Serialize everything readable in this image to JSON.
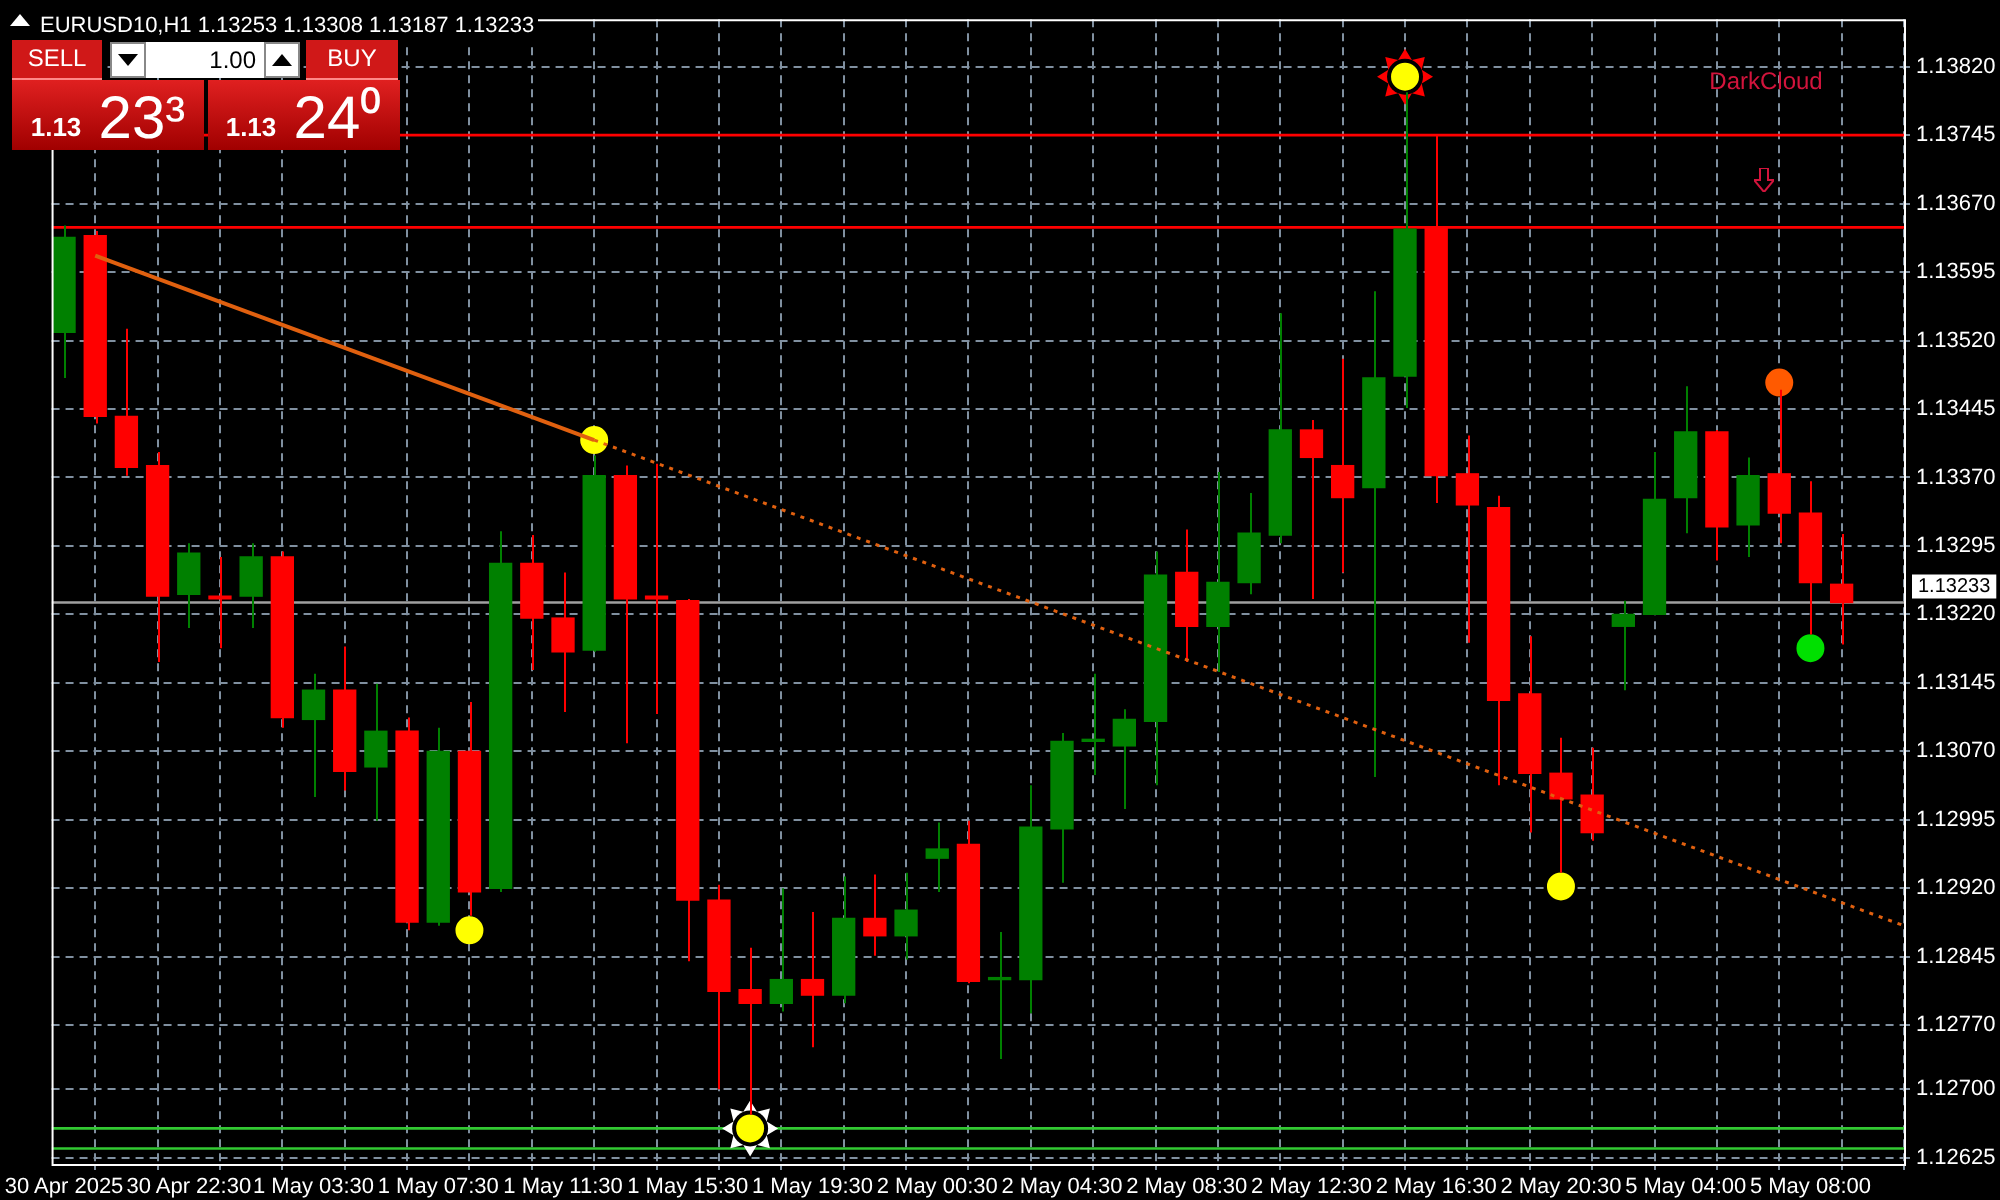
{
  "chart_data": {
    "type": "candlestick",
    "title": "EURUSD10,H1",
    "subtitle": "1.13253 1.13308 1.13187 1.13233",
    "categories": [
      "30 Apr 2025",
      null,
      null,
      null,
      "30 Apr 22:30",
      null,
      null,
      null,
      "1 May 03:30",
      null,
      null,
      null,
      "1 May 07:30",
      null,
      null,
      null,
      "1 May 11:30",
      null,
      null,
      null,
      "1 May 15:30",
      null,
      null,
      null,
      "1 May 19:30",
      null,
      null,
      null,
      "2 May 00:30",
      null,
      null,
      null,
      "2 May 04:30",
      null,
      null,
      null,
      "2 May 08:30",
      null,
      null,
      null,
      "2 May 12:30",
      null,
      null,
      null,
      "2 May 16:30",
      null,
      null,
      null,
      "2 May 20:30",
      null,
      null,
      null,
      "5 May 04:00",
      null,
      null,
      null,
      "5 May 08:00",
      null,
      null,
      null
    ],
    "ohlc": [
      [
        1.13529,
        1.13646,
        1.13479,
        1.13633
      ],
      [
        1.13635,
        1.1364,
        1.13429,
        1.13437
      ],
      [
        1.13437,
        1.13533,
        1.13372,
        1.13381
      ],
      [
        1.13383,
        1.13398,
        1.13168,
        1.1324
      ],
      [
        1.13242,
        1.13298,
        1.13205,
        1.13287
      ],
      [
        1.1324,
        1.13283,
        1.13183,
        1.13237
      ],
      [
        1.1324,
        1.13298,
        1.13205,
        1.13283
      ],
      [
        1.13283,
        1.13289,
        1.13096,
        1.13107
      ],
      [
        1.13105,
        1.13155,
        1.1302,
        1.13137
      ],
      [
        1.13137,
        1.13185,
        1.13027,
        1.13048
      ],
      [
        1.13053,
        1.13144,
        1.12994,
        1.13092
      ],
      [
        1.13092,
        1.13107,
        1.12874,
        1.12883
      ],
      [
        1.12883,
        1.13096,
        1.12879,
        1.1307
      ],
      [
        1.1307,
        1.13124,
        1.1289,
        1.12916
      ],
      [
        1.1292,
        1.13311,
        1.12916,
        1.13276
      ],
      [
        1.13276,
        1.13307,
        1.13159,
        1.13216
      ],
      [
        1.13216,
        1.13266,
        1.13113,
        1.13179
      ],
      [
        1.13181,
        1.13394,
        1.13179,
        1.13372
      ],
      [
        1.13372,
        1.13383,
        1.13079,
        1.13237
      ],
      [
        1.1324,
        1.13385,
        1.13111,
        1.13237
      ],
      [
        1.13235,
        1.13237,
        1.1284,
        1.12907
      ],
      [
        1.12907,
        1.12924,
        1.127,
        1.12807
      ],
      [
        1.12809,
        1.12855,
        1.12672,
        1.12794
      ],
      [
        1.12794,
        1.1292,
        1.12785,
        1.1282
      ],
      [
        1.1282,
        1.12894,
        1.12746,
        1.12803
      ],
      [
        1.12803,
        1.12933,
        1.12794,
        1.12887
      ],
      [
        1.12887,
        1.12935,
        1.12846,
        1.12868
      ],
      [
        1.12868,
        1.12937,
        1.12842,
        1.12896
      ],
      [
        1.12953,
        1.12992,
        1.12916,
        1.12963
      ],
      [
        1.12968,
        1.12994,
        1.12816,
        1.12818
      ],
      [
        1.1282,
        1.12872,
        1.12733,
        1.12822
      ],
      [
        1.1282,
        1.13033,
        1.12783,
        1.12987
      ],
      [
        1.12985,
        1.1309,
        1.12926,
        1.13081
      ],
      [
        1.13081,
        1.13155,
        1.13044,
        1.13083
      ],
      [
        1.13076,
        1.13116,
        1.13007,
        1.13105
      ],
      [
        1.13103,
        1.13289,
        1.13033,
        1.13263
      ],
      [
        1.13266,
        1.13313,
        1.13168,
        1.13207
      ],
      [
        1.13207,
        1.13376,
        1.13157,
        1.13255
      ],
      [
        1.13255,
        1.13353,
        1.13242,
        1.13309
      ],
      [
        1.13307,
        1.1355,
        1.13298,
        1.13422
      ],
      [
        1.13422,
        1.13433,
        1.13237,
        1.13392
      ],
      [
        1.13383,
        1.135,
        1.13266,
        1.13348
      ],
      [
        1.13359,
        1.13574,
        1.13042,
        1.13479
      ],
      [
        1.13481,
        1.13792,
        1.13446,
        1.13642
      ],
      [
        1.13644,
        1.13745,
        1.13342,
        1.13372
      ],
      [
        1.13374,
        1.13416,
        1.13189,
        1.1334
      ],
      [
        1.13337,
        1.1335,
        1.13033,
        1.13126
      ],
      [
        1.13133,
        1.13196,
        1.12981,
        1.13046
      ],
      [
        1.13046,
        1.13085,
        1.12937,
        1.13018
      ],
      [
        1.13022,
        1.13074,
        1.12972,
        1.12981
      ],
      [
        1.13207,
        1.13235,
        1.13137,
        1.1322
      ],
      [
        1.1322,
        1.13398,
        1.1322,
        1.13346
      ],
      [
        1.13348,
        1.1347,
        1.13309,
        1.1342
      ],
      [
        1.1342,
        1.13422,
        1.13279,
        1.13316
      ],
      [
        1.13318,
        1.13392,
        1.13283,
        1.13372
      ],
      [
        1.13374,
        1.13466,
        1.13298,
        1.13331
      ],
      [
        1.13331,
        1.13366,
        1.13198,
        1.13255
      ],
      [
        1.13253,
        1.13308,
        1.13187,
        1.13233
      ],
      null,
      null
    ],
    "colors": [
      "#008000",
      "#ff0000",
      "#ff0000",
      "#ff0000",
      "#008000",
      "#ff0000",
      "#008000",
      "#ff0000",
      "#008000",
      "#ff0000",
      "#008000",
      "#ff0000",
      "#008000",
      "#ff0000",
      "#008000",
      "#ff0000",
      "#ff0000",
      "#008000",
      "#ff0000",
      "#ff0000",
      "#ff0000",
      "#ff0000",
      "#ff0000",
      "#008000",
      "#ff0000",
      "#008000",
      "#ff0000",
      "#008000",
      "#008000",
      "#ff0000",
      "#008000",
      "#008000",
      "#008000",
      "#008000",
      "#008000",
      "#008000",
      "#ff0000",
      "#008000",
      "#008000",
      "#008000",
      "#ff0000",
      "#ff0000",
      "#008000",
      "#008000",
      "#ff0000",
      "#ff0000",
      "#ff0000",
      "#ff0000",
      "#ff0000",
      "#ff0000",
      "#008000",
      "#008000",
      "#008000",
      "#ff0000",
      "#008000",
      "#ff0000",
      "#ff0000",
      "#ff0000",
      null,
      null
    ],
    "series": [
      {
        "type": "line",
        "color": "#e0600f",
        "line_style": "solid",
        "values": [
          null,
          1.13613,
          null,
          null,
          null,
          null,
          null,
          null,
          null,
          null,
          null,
          null,
          null,
          null,
          null,
          null,
          null,
          1.13411,
          null,
          null,
          null,
          null,
          null,
          null,
          null,
          null,
          null,
          null,
          null,
          null,
          null,
          null,
          null,
          null,
          null,
          null,
          null,
          null,
          null,
          null,
          null,
          null,
          null,
          null,
          null,
          null,
          null,
          null,
          null,
          null,
          null,
          null,
          null,
          null,
          null,
          null,
          null,
          null,
          null,
          null
        ]
      },
      {
        "type": "line",
        "color": "#e0600f",
        "line_style": "dotted",
        "values": [
          null,
          null,
          null,
          null,
          null,
          null,
          null,
          null,
          null,
          null,
          null,
          null,
          null,
          null,
          null,
          null,
          null,
          1.13411,
          null,
          null,
          null,
          null,
          null,
          null,
          null,
          null,
          null,
          null,
          null,
          null,
          null,
          null,
          null,
          null,
          null,
          null,
          null,
          null,
          null,
          null,
          null,
          null,
          null,
          null,
          null,
          null,
          null,
          null,
          null,
          null,
          null,
          null,
          null,
          null,
          null,
          null,
          null,
          null,
          null,
          1.12879
        ]
      },
      {
        "type": "scatter",
        "color": "#ff0000",
        "marker": "star",
        "values": [
          null,
          null,
          null,
          null,
          null,
          null,
          null,
          null,
          null,
          null,
          null,
          null,
          null,
          null,
          null,
          null,
          null,
          null,
          null,
          null,
          null,
          null,
          null,
          null,
          null,
          null,
          null,
          null,
          null,
          null,
          null,
          null,
          null,
          null,
          null,
          null,
          null,
          null,
          null,
          null,
          null,
          null,
          null,
          1.13809,
          null,
          null,
          null,
          null,
          null,
          null,
          null,
          null,
          null,
          null,
          null,
          null,
          null,
          null,
          null,
          null
        ]
      },
      {
        "type": "scatter",
        "color": "#ffffff",
        "marker": "star",
        "values": [
          null,
          null,
          null,
          null,
          null,
          null,
          null,
          null,
          null,
          null,
          null,
          null,
          null,
          null,
          null,
          null,
          null,
          null,
          null,
          null,
          null,
          null,
          1.12657,
          null,
          null,
          null,
          null,
          null,
          null,
          null,
          null,
          null,
          null,
          null,
          null,
          null,
          null,
          null,
          null,
          null,
          null,
          null,
          null,
          null,
          null,
          null,
          null,
          null,
          null,
          null,
          null,
          null,
          null,
          null,
          null,
          null,
          null,
          null,
          null,
          null
        ]
      },
      {
        "type": "scatter",
        "color": "#ffff00",
        "marker": "circle",
        "values": [
          null,
          null,
          null,
          null,
          null,
          null,
          null,
          null,
          null,
          null,
          null,
          null,
          null,
          1.12874,
          null,
          null,
          null,
          1.13411,
          null,
          null,
          null,
          null,
          1.12657,
          null,
          null,
          null,
          null,
          null,
          null,
          null,
          null,
          null,
          null,
          null,
          null,
          null,
          null,
          null,
          null,
          null,
          null,
          null,
          null,
          1.13809,
          null,
          null,
          null,
          null,
          1.12922,
          null,
          null,
          null,
          null,
          null,
          null,
          null,
          null,
          null,
          null,
          null
        ]
      },
      {
        "type": "scatter",
        "color": "#ff5a00",
        "marker": "circle",
        "values": [
          null,
          null,
          null,
          null,
          null,
          null,
          null,
          null,
          null,
          null,
          null,
          null,
          null,
          null,
          null,
          null,
          null,
          null,
          null,
          null,
          null,
          null,
          null,
          null,
          null,
          null,
          null,
          null,
          null,
          null,
          null,
          null,
          null,
          null,
          null,
          null,
          null,
          null,
          null,
          null,
          null,
          null,
          null,
          null,
          null,
          null,
          null,
          null,
          null,
          null,
          null,
          null,
          null,
          null,
          null,
          1.13474,
          null,
          null,
          null,
          null
        ]
      },
      {
        "type": "scatter",
        "color": "#00e000",
        "marker": "circle",
        "values": [
          null,
          null,
          null,
          null,
          null,
          null,
          null,
          null,
          null,
          null,
          null,
          null,
          null,
          null,
          null,
          null,
          null,
          null,
          null,
          null,
          null,
          null,
          null,
          null,
          null,
          null,
          null,
          null,
          null,
          null,
          null,
          null,
          null,
          null,
          null,
          null,
          null,
          null,
          null,
          null,
          null,
          null,
          null,
          null,
          null,
          null,
          null,
          null,
          null,
          null,
          null,
          null,
          null,
          null,
          null,
          null,
          1.13183,
          null,
          null,
          null
        ]
      }
    ],
    "ylim": [
      1.12618,
      1.13872
    ],
    "yticks": [
      {
        "value": 1.1382,
        "label": "1.13820"
      },
      {
        "value": 1.13745,
        "label": "1.13745"
      },
      {
        "value": 1.1367,
        "label": "1.13670"
      },
      {
        "value": 1.13595,
        "label": "1.13595"
      },
      {
        "value": 1.1352,
        "label": "1.13520"
      },
      {
        "value": 1.13445,
        "label": "1.13445"
      },
      {
        "value": 1.1337,
        "label": "1.13370"
      },
      {
        "value": 1.13295,
        "label": "1.13295"
      },
      {
        "value": 1.1322,
        "label": "1.13220"
      },
      {
        "value": 1.13145,
        "label": "1.13145"
      },
      {
        "value": 1.1307,
        "label": "1.13070"
      },
      {
        "value": 1.12995,
        "label": "1.12995"
      },
      {
        "value": 1.1292,
        "label": "1.12920"
      },
      {
        "value": 1.12845,
        "label": "1.12845"
      },
      {
        "value": 1.1277,
        "label": "1.12770"
      },
      {
        "value": 1.127,
        "label": "1.12700"
      },
      {
        "value": 1.12625,
        "label": "1.12625"
      }
    ],
    "ref_lines": [
      {
        "axis": "y",
        "value": 1.13644,
        "color": "#ff0000"
      },
      {
        "axis": "y",
        "value": 1.13745,
        "color": "#ff0000"
      },
      {
        "axis": "y",
        "value": 1.12657,
        "color": "#32c832"
      },
      {
        "axis": "y",
        "value": 1.12635,
        "color": "#32c832"
      },
      {
        "axis": "y",
        "value": 1.13233,
        "label": "1.13233",
        "color": "#a0a0a0"
      }
    ],
    "annotations": [
      "SELL",
      "1.00",
      "BUY",
      "1.13 23³",
      "1.13 24⁰",
      "DarkCloud"
    ],
    "grid": true
  }
}
